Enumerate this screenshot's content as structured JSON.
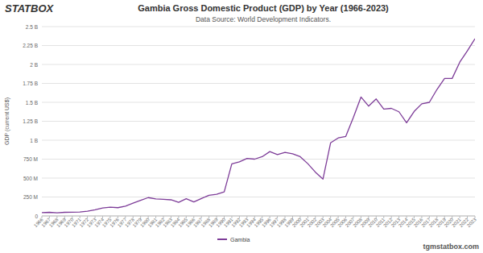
{
  "chart_data": {
    "type": "line",
    "title": "Gambia Gross Domestic Product (GDP) by Year (1966-2023)",
    "subtitle": "Data Source: World Development Indicators.",
    "y_label": "GDP (current US$)",
    "annotations": [
      "STATBOX",
      "tgmstatbox.com"
    ],
    "x": [
      1966,
      1967,
      1968,
      1969,
      1970,
      1971,
      1972,
      1973,
      1974,
      1975,
      1976,
      1977,
      1978,
      1979,
      1980,
      1981,
      1982,
      1983,
      1984,
      1985,
      1986,
      1987,
      1988,
      1989,
      1990,
      1991,
      1992,
      1993,
      1994,
      1995,
      1996,
      1997,
      1998,
      1999,
      2000,
      2001,
      2002,
      2003,
      2004,
      2005,
      2006,
      2007,
      2008,
      2009,
      2010,
      2011,
      2012,
      2013,
      2014,
      2015,
      2016,
      2017,
      2018,
      2019,
      2020,
      2021,
      2022,
      2023
    ],
    "series": [
      {
        "name": "Gambia",
        "color": "#7d3c98",
        "values": [
          44000000,
          48000000,
          42000000,
          48000000,
          49000000,
          52000000,
          63000000,
          81000000,
          104000000,
          116000000,
          109000000,
          130000000,
          169000000,
          205000000,
          242000000,
          224000000,
          219000000,
          213000000,
          179000000,
          227000000,
          185000000,
          231000000,
          272000000,
          285000000,
          317000000,
          687000000,
          714000000,
          760000000,
          750000000,
          782000000,
          850000000,
          810000000,
          840000000,
          820000000,
          783000000,
          690000000,
          578000000,
          487000000,
          965000000,
          1030000000,
          1050000000,
          1300000000,
          1570000000,
          1450000000,
          1545000000,
          1410000000,
          1420000000,
          1375000000,
          1230000000,
          1380000000,
          1480000000,
          1500000000,
          1670000000,
          1815000000,
          1815000000,
          2030000000,
          2180000000,
          2340000000
        ]
      }
    ],
    "xlim": [
      1966,
      2023
    ],
    "xticks": [
      1966,
      1967,
      1968,
      1969,
      1970,
      1971,
      1972,
      1973,
      1974,
      1975,
      1976,
      1977,
      1978,
      1979,
      1980,
      1981,
      1982,
      1983,
      1984,
      1985,
      1986,
      1987,
      1988,
      1989,
      1990,
      1991,
      1992,
      1993,
      1994,
      1995,
      1996,
      1997,
      1998,
      1999,
      2000,
      2001,
      2002,
      2003,
      2004,
      2005,
      2006,
      2007,
      2008,
      2009,
      2010,
      2011,
      2012,
      2013,
      2014,
      2015,
      2016,
      2017,
      2018,
      2019,
      2020,
      2021,
      2022,
      2023
    ],
    "ylim": [
      0,
      2500000000
    ],
    "yticks": [
      0,
      {
        "value": 250000000,
        "label": "250 M"
      },
      {
        "value": 500000000,
        "label": "500 M"
      },
      {
        "value": 750000000,
        "label": "750 M"
      },
      {
        "value": 1000000000,
        "label": "1 B"
      },
      {
        "value": 1250000000,
        "label": "1.25 B"
      },
      {
        "value": 1500000000,
        "label": "1.5 B"
      },
      {
        "value": 1750000000,
        "label": "1.75 B"
      },
      {
        "value": 2000000000,
        "label": "2 B"
      },
      {
        "value": 2250000000,
        "label": "2.25 B"
      },
      {
        "value": 2500000000,
        "label": "2.5 B"
      }
    ],
    "grid": true,
    "legend": "bottom"
  }
}
